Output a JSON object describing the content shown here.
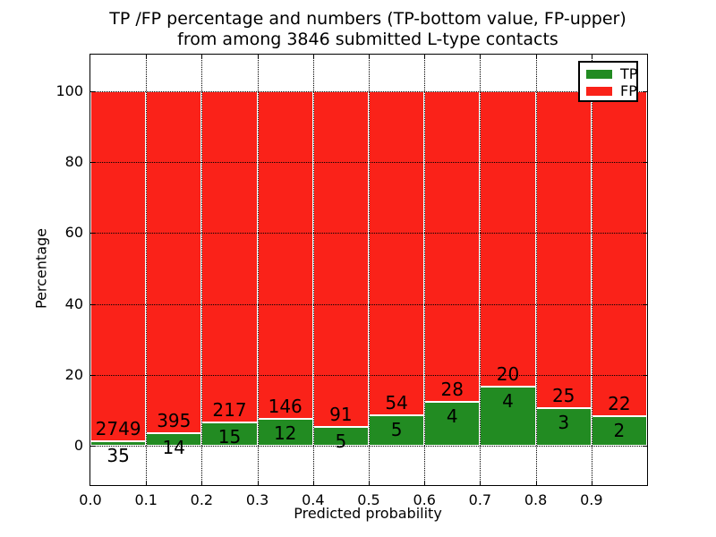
{
  "figure": {
    "title_line1": "TP /FP percentage and numbers (TP-bottom value, FP-upper)",
    "title_line2": "from among 3846 submitted L-type contacts"
  },
  "chart_data": {
    "type": "bar",
    "stacked": true,
    "normalized_to_percent": true,
    "title": "TP /FP percentage and numbers (TP-bottom value, FP-upper) from among 3846 submitted L-type contacts",
    "xlabel": "Predicted probability",
    "ylabel": "Percentage",
    "total_contacts": 3846,
    "bins": [
      "0.0-0.1",
      "0.1-0.2",
      "0.2-0.3",
      "0.3-0.4",
      "0.4-0.5",
      "0.5-0.6",
      "0.6-0.7",
      "0.7-0.8",
      "0.8-0.9",
      "0.9-1.0"
    ],
    "xtick_labels": [
      "0.0",
      "0.1",
      "0.2",
      "0.3",
      "0.4",
      "0.5",
      "0.6",
      "0.7",
      "0.8",
      "0.9"
    ],
    "ytick_values": [
      0,
      20,
      40,
      60,
      80,
      100
    ],
    "xlim": [
      0.0,
      1.0
    ],
    "ylim": [
      -11,
      110
    ],
    "grid": {
      "style": "dotted",
      "color": "#000000"
    },
    "annotation_note": "FP count printed above each green bar top, TP count printed below it",
    "series": [
      {
        "name": "TP",
        "color": "#228b22",
        "counts": [
          35,
          14,
          15,
          12,
          5,
          5,
          4,
          4,
          3,
          2
        ],
        "percent": [
          1.26,
          3.42,
          6.47,
          7.59,
          5.21,
          8.47,
          12.5,
          16.67,
          10.71,
          8.33
        ]
      },
      {
        "name": "FP",
        "color": "#fa2219",
        "counts": [
          2749,
          395,
          217,
          146,
          91,
          54,
          28,
          20,
          25,
          22
        ],
        "percent": [
          98.74,
          96.58,
          93.53,
          92.41,
          94.79,
          91.53,
          87.5,
          83.33,
          89.29,
          91.67
        ]
      }
    ],
    "legend": {
      "position": "upper right",
      "entries": [
        {
          "label": "TP",
          "color": "#228b22"
        },
        {
          "label": "FP",
          "color": "#fa2219"
        }
      ]
    }
  }
}
